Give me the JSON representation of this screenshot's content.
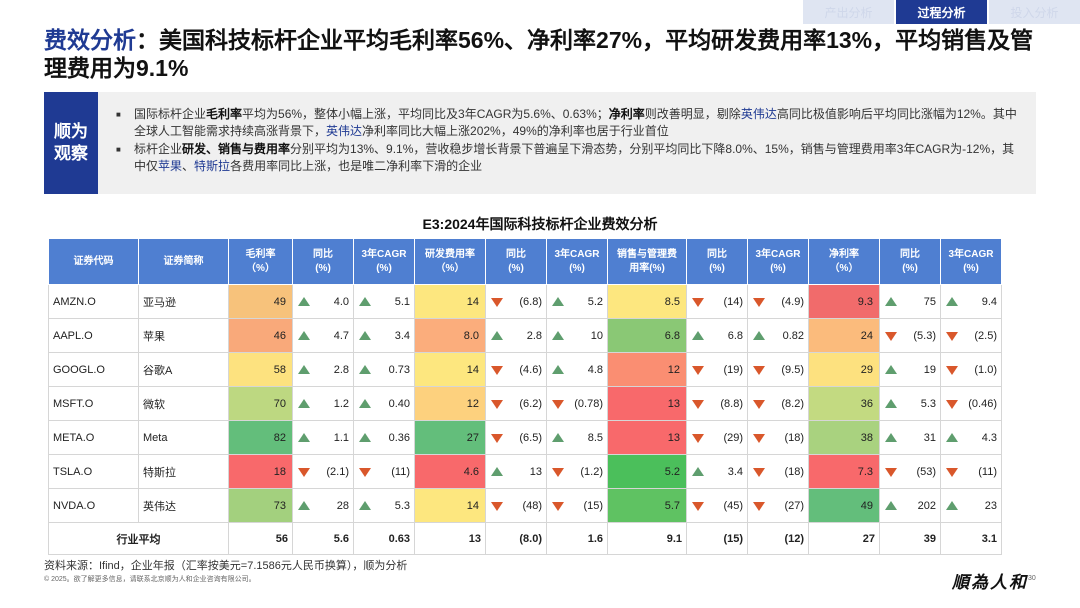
{
  "nav": {
    "tabs": [
      {
        "label": "产出分析",
        "active": false
      },
      {
        "label": "过程分析",
        "active": true
      },
      {
        "label": "投入分析",
        "active": false
      }
    ]
  },
  "title": {
    "accent": "费效分析",
    "rest": "：美国科技标杆企业平均毛利率56%、净利率27%，平均研发费用率13%，平均销售及管理费用为9.1%"
  },
  "observation": {
    "label_line1": "顺为",
    "label_line2": "观察",
    "items": [
      {
        "segments": [
          {
            "text": "国际标杆企业",
            "style": "normal"
          },
          {
            "text": "毛利率",
            "style": "bold"
          },
          {
            "text": "平均为56%，整体小幅上涨，平均同比及3年CAGR为5.6%、0.63%；",
            "style": "normal"
          },
          {
            "text": "净利率",
            "style": "bold"
          },
          {
            "text": "则改善明显，剔除",
            "style": "normal"
          },
          {
            "text": "英伟达",
            "style": "hl"
          },
          {
            "text": "高同比极值影响后平均同比涨幅为12%。其中全球人工智能需求持续高涨背景下，",
            "style": "normal"
          },
          {
            "text": "英伟达",
            "style": "hl"
          },
          {
            "text": "净利率同比大幅上涨202%，49%的净利率也居于行业首位",
            "style": "normal"
          }
        ]
      },
      {
        "segments": [
          {
            "text": "标杆企业",
            "style": "normal"
          },
          {
            "text": "研发、销售与费用率",
            "style": "bold"
          },
          {
            "text": "分别平均为13%、9.1%，营收稳步增长背景下普遍呈下滑态势，分别平均同比下降8.0%、15%，销售与管理费用率3年CAGR为-12%，其中仅",
            "style": "normal"
          },
          {
            "text": "苹果",
            "style": "hl"
          },
          {
            "text": "、",
            "style": "normal"
          },
          {
            "text": "特斯拉",
            "style": "hl"
          },
          {
            "text": "各费用率同比上涨，也是唯二净利率下滑的企业",
            "style": "normal"
          }
        ]
      }
    ]
  },
  "table_title": "E3:2024年国际科技标杆企业费效分析",
  "table": {
    "headers": [
      {
        "line1": "证券代码",
        "line2": ""
      },
      {
        "line1": "证券简称",
        "line2": ""
      },
      {
        "line1": "毛利率",
        "line2": "（%）"
      },
      {
        "line1": "同比",
        "line2": "(%)"
      },
      {
        "line1": "3年CAGR",
        "line2": "(%)"
      },
      {
        "line1": "研发费用率",
        "line2": "（%）"
      },
      {
        "line1": "同比",
        "line2": "(%)"
      },
      {
        "line1": "3年CAGR",
        "line2": "(%)"
      },
      {
        "line1": "销售与管理费",
        "line2": "用率(%)"
      },
      {
        "line1": "同比",
        "line2": "(%)"
      },
      {
        "line1": "3年CAGR",
        "line2": "(%)"
      },
      {
        "line1": "净利率",
        "line2": "（%）"
      },
      {
        "line1": "同比",
        "line2": "(%)"
      },
      {
        "line1": "3年CAGR",
        "line2": "(%)"
      }
    ],
    "rows": [
      {
        "code": "AMZN.O",
        "name": "亚马逊",
        "gross": {
          "v": "49",
          "color": "#f7c27b"
        },
        "gross_yoy": {
          "v": "4.0",
          "dir": "up"
        },
        "gross_cagr": {
          "v": "5.1",
          "dir": "up"
        },
        "rd": {
          "v": "14",
          "color": "#fde77f"
        },
        "rd_yoy": {
          "v": "(6.8)",
          "dir": "down"
        },
        "rd_cagr": {
          "v": "5.2",
          "dir": "up"
        },
        "sga": {
          "v": "8.5",
          "color": "#fde77f"
        },
        "sga_yoy": {
          "v": "(14)",
          "dir": "down"
        },
        "sga_cagr": {
          "v": "(4.9)",
          "dir": "down"
        },
        "net": {
          "v": "9.3",
          "color": "#f16b6b"
        },
        "net_yoy": {
          "v": "75",
          "dir": "up"
        },
        "net_cagr": {
          "v": "9.4",
          "dir": "up"
        }
      },
      {
        "code": "AAPL.O",
        "name": "苹果",
        "gross": {
          "v": "46",
          "color": "#f9a97a"
        },
        "gross_yoy": {
          "v": "4.7",
          "dir": "up"
        },
        "gross_cagr": {
          "v": "3.4",
          "dir": "up"
        },
        "rd": {
          "v": "8.0",
          "color": "#fbad7c"
        },
        "rd_yoy": {
          "v": "2.8",
          "dir": "up"
        },
        "rd_cagr": {
          "v": "10",
          "dir": "up"
        },
        "sga": {
          "v": "6.8",
          "color": "#8ac875"
        },
        "sga_yoy": {
          "v": "6.8",
          "dir": "up"
        },
        "sga_cagr": {
          "v": "0.82",
          "dir": "up"
        },
        "net": {
          "v": "24",
          "color": "#fbbb7c"
        },
        "net_yoy": {
          "v": "(5.3)",
          "dir": "down"
        },
        "net_cagr": {
          "v": "(2.5)",
          "dir": "down"
        }
      },
      {
        "code": "GOOGL.O",
        "name": "谷歌A",
        "gross": {
          "v": "58",
          "color": "#fde27f"
        },
        "gross_yoy": {
          "v": "2.8",
          "dir": "up"
        },
        "gross_cagr": {
          "v": "0.73",
          "dir": "up"
        },
        "rd": {
          "v": "14",
          "color": "#fde77f"
        },
        "rd_yoy": {
          "v": "(4.6)",
          "dir": "down"
        },
        "rd_cagr": {
          "v": "4.8",
          "dir": "up"
        },
        "sga": {
          "v": "12",
          "color": "#fa8e72"
        },
        "sga_yoy": {
          "v": "(19)",
          "dir": "down"
        },
        "sga_cagr": {
          "v": "(9.5)",
          "dir": "down"
        },
        "net": {
          "v": "29",
          "color": "#fde17f"
        },
        "net_yoy": {
          "v": "19",
          "dir": "up"
        },
        "net_cagr": {
          "v": "(1.0)",
          "dir": "down"
        }
      },
      {
        "code": "MSFT.O",
        "name": "微软",
        "gross": {
          "v": "70",
          "color": "#bdd881"
        },
        "gross_yoy": {
          "v": "1.2",
          "dir": "up"
        },
        "gross_cagr": {
          "v": "0.40",
          "dir": "up"
        },
        "rd": {
          "v": "12",
          "color": "#fdd17e"
        },
        "rd_yoy": {
          "v": "(6.2)",
          "dir": "down"
        },
        "rd_cagr": {
          "v": "(0.78)",
          "dir": "down"
        },
        "sga": {
          "v": "13",
          "color": "#f8696b"
        },
        "sga_yoy": {
          "v": "(8.8)",
          "dir": "down"
        },
        "sga_cagr": {
          "v": "(8.2)",
          "dir": "down"
        },
        "net": {
          "v": "36",
          "color": "#c3da81"
        },
        "net_yoy": {
          "v": "5.3",
          "dir": "up"
        },
        "net_cagr": {
          "v": "(0.46)",
          "dir": "down"
        }
      },
      {
        "code": "META.O",
        "name": "Meta",
        "gross": {
          "v": "82",
          "color": "#63be7b"
        },
        "gross_yoy": {
          "v": "1.1",
          "dir": "up"
        },
        "gross_cagr": {
          "v": "0.36",
          "dir": "up"
        },
        "rd": {
          "v": "27",
          "color": "#63be7b"
        },
        "rd_yoy": {
          "v": "(6.5)",
          "dir": "down"
        },
        "rd_cagr": {
          "v": "8.5",
          "dir": "up"
        },
        "sga": {
          "v": "13",
          "color": "#f8696b"
        },
        "sga_yoy": {
          "v": "(29)",
          "dir": "down"
        },
        "sga_cagr": {
          "v": "(18)",
          "dir": "down"
        },
        "net": {
          "v": "38",
          "color": "#a9d27f"
        },
        "net_yoy": {
          "v": "31",
          "dir": "up"
        },
        "net_cagr": {
          "v": "4.3",
          "dir": "up"
        }
      },
      {
        "code": "TSLA.O",
        "name": "特斯拉",
        "gross": {
          "v": "18",
          "color": "#f8696b"
        },
        "gross_yoy": {
          "v": "(2.1)",
          "dir": "down"
        },
        "gross_cagr": {
          "v": "(11)",
          "dir": "down"
        },
        "rd": {
          "v": "4.6",
          "color": "#f8696b"
        },
        "rd_yoy": {
          "v": "13",
          "dir": "up"
        },
        "rd_cagr": {
          "v": "(1.2)",
          "dir": "down"
        },
        "sga": {
          "v": "5.2",
          "color": "#4bbf5b"
        },
        "sga_yoy": {
          "v": "3.4",
          "dir": "up"
        },
        "sga_cagr": {
          "v": "(18)",
          "dir": "down"
        },
        "net": {
          "v": "7.3",
          "color": "#f8696b"
        },
        "net_yoy": {
          "v": "(53)",
          "dir": "down"
        },
        "net_cagr": {
          "v": "(11)",
          "dir": "down"
        }
      },
      {
        "code": "NVDA.O",
        "name": "英伟达",
        "gross": {
          "v": "73",
          "color": "#a3d07e"
        },
        "gross_yoy": {
          "v": "28",
          "dir": "up"
        },
        "gross_cagr": {
          "v": "5.3",
          "dir": "up"
        },
        "rd": {
          "v": "14",
          "color": "#fde77f"
        },
        "rd_yoy": {
          "v": "(48)",
          "dir": "down"
        },
        "rd_cagr": {
          "v": "(15)",
          "dir": "down"
        },
        "sga": {
          "v": "5.7",
          "color": "#5fc262"
        },
        "sga_yoy": {
          "v": "(45)",
          "dir": "down"
        },
        "sga_cagr": {
          "v": "(27)",
          "dir": "down"
        },
        "net": {
          "v": "49",
          "color": "#63be7b"
        },
        "net_yoy": {
          "v": "202",
          "dir": "up"
        },
        "net_cagr": {
          "v": "23",
          "dir": "up"
        }
      }
    ],
    "average": {
      "label": "行业平均",
      "values": [
        "56",
        "5.6",
        "0.63",
        "13",
        "(8.0)",
        "1.6",
        "9.1",
        "(15)",
        "(12)",
        "27",
        "39",
        "3.1"
      ]
    }
  },
  "footer": {
    "source": "资料来源：Ifind，企业年报（汇率按美元=7.1586元人民币换算），顺为分析",
    "copyright": "© 2025。欲了解更多信息，请联系北京顺为人和企业咨询有限公司。",
    "logo": "順為人和",
    "page": "30"
  },
  "colors": {
    "accent": "#1f3a93",
    "header": "#4f7fd1",
    "up": "#5f9e6e",
    "down": "#d9572b"
  }
}
